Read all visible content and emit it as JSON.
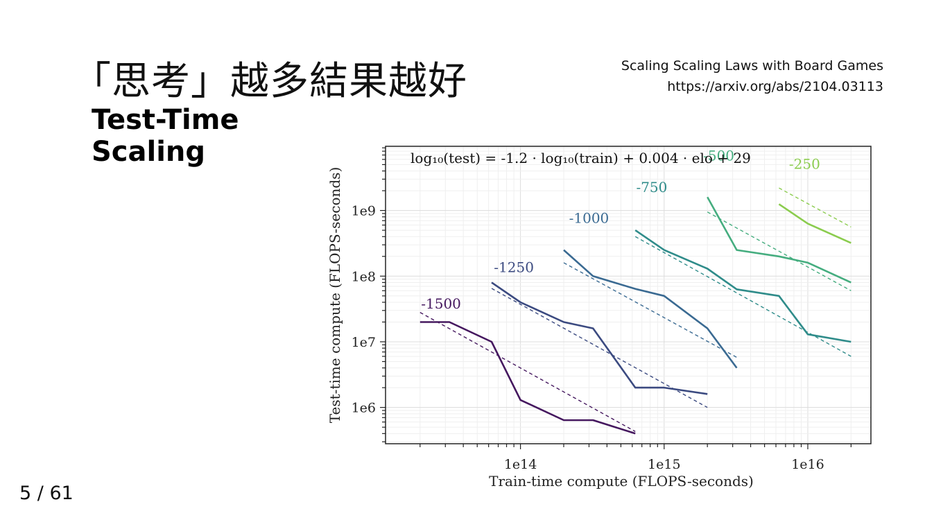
{
  "slide": {
    "title": "「思考」越多結果越好",
    "subtitle_line1": "Test-Time",
    "subtitle_line2": "Scaling",
    "reference_title": "Scaling Scaling Laws with Board Games",
    "reference_url": "https://arxiv.org/abs/2104.03113",
    "page": "5 / 61"
  },
  "chart_data": {
    "type": "line",
    "title": "",
    "annotation": "log₁₀(test) = -1.2 · log₁₀(train) + 0.004 · elo + 29",
    "xlabel": "Train-time compute (FLOPS-seconds)",
    "ylabel": "Test-time compute (FLOPS-seconds)",
    "xscale": "log",
    "yscale": "log",
    "xlim": [
      11500000000000.0,
      2.75e+16
    ],
    "ylim": [
      280000.0,
      9500000000.0
    ],
    "x_ticks": [
      {
        "value": 100000000000000.0,
        "label": "1e14"
      },
      {
        "value": 1000000000000000.0,
        "label": "1e15"
      },
      {
        "value": 1e+16,
        "label": "1e16"
      }
    ],
    "y_ticks": [
      {
        "value": 1000000.0,
        "label": "1e6"
      },
      {
        "value": 10000000.0,
        "label": "1e7"
      },
      {
        "value": 100000000.0,
        "label": "1e8"
      },
      {
        "value": 1000000000.0,
        "label": "1e9"
      }
    ],
    "grid": true,
    "series": [
      {
        "name": "-1500",
        "color": "#45185f",
        "x": [
          20000000000000.0,
          32000000000000.0,
          63000000000000.0,
          100000000000000.0,
          200000000000000.0,
          320000000000000.0,
          630000000000000.0
        ],
        "y": [
          20000000.0,
          20000000.0,
          10000000.0,
          1300000.0,
          640000.0,
          640000.0,
          400000.0
        ],
        "fit_x": [
          20000000000000.0,
          630000000000000.0
        ],
        "fit_y": [
          28000000.0,
          430000.0
        ]
      },
      {
        "name": "-1250",
        "color": "#3b4a80",
        "x": [
          63000000000000.0,
          100000000000000.0,
          200000000000000.0,
          320000000000000.0,
          630000000000000.0,
          1000000000000000.0,
          2000000000000000.0
        ],
        "y": [
          80000000.0,
          40000000.0,
          20000000.0,
          16000000.0,
          2000000.0,
          2000000.0,
          1600000.0
        ],
        "fit_x": [
          63000000000000.0,
          2000000000000000.0
        ],
        "fit_y": [
          65000000.0,
          1000000.0
        ]
      },
      {
        "name": "-1000",
        "color": "#3a6a92",
        "x": [
          200000000000000.0,
          320000000000000.0,
          630000000000000.0,
          1000000000000000.0,
          2000000000000000.0,
          3200000000000000.0
        ],
        "y": [
          250000000.0,
          100000000.0,
          64000000.0,
          50000000.0,
          16000000.0,
          4000000.0
        ],
        "fit_x": [
          200000000000000.0,
          3200000000000000.0
        ],
        "fit_y": [
          160000000.0,
          5800000.0
        ]
      },
      {
        "name": "-750",
        "color": "#2f8c8a",
        "x": [
          630000000000000.0,
          1000000000000000.0,
          2000000000000000.0,
          3200000000000000.0,
          6300000000000000.0,
          1e+16,
          2e+16
        ],
        "y": [
          500000000.0,
          250000000.0,
          130000000.0,
          63000000.0,
          50000000.0,
          13000000.0,
          10000000.0
        ],
        "fit_x": [
          630000000000000.0,
          2e+16
        ],
        "fit_y": [
          400000000.0,
          6000000.0
        ]
      },
      {
        "name": "-500",
        "color": "#45ad7f",
        "x": [
          2000000000000000.0,
          3200000000000000.0,
          6300000000000000.0,
          1e+16,
          2e+16
        ],
        "y": [
          1600000000.0,
          250000000.0,
          200000000.0,
          160000000.0,
          80000000.0
        ],
        "fit_x": [
          2000000000000000.0,
          2e+16
        ],
        "fit_y": [
          950000000.0,
          60000000.0
        ]
      },
      {
        "name": "-250",
        "color": "#8bcc4e",
        "x": [
          6300000000000000.0,
          1e+16,
          2e+16
        ],
        "y": [
          1250000000.0,
          630000000.0,
          320000000.0
        ],
        "fit_x": [
          6300000000000000.0,
          2e+16
        ],
        "fit_y": [
          2200000000.0,
          560000000.0
        ]
      }
    ],
    "label_positions": [
      {
        "name": "-1500",
        "x": 28000000000000.0,
        "y": 32000000.0
      },
      {
        "name": "-1250",
        "x": 90000000000000.0,
        "y": 115000000.0
      },
      {
        "name": "-1000",
        "x": 300000000000000.0,
        "y": 650000000.0
      },
      {
        "name": "-750",
        "x": 820000000000000.0,
        "y": 1900000000.0
      },
      {
        "name": "-500",
        "x": 2400000000000000.0,
        "y": 5800000000.0
      },
      {
        "name": "-250",
        "x": 9500000000000000.0,
        "y": 4300000000.0
      }
    ]
  }
}
